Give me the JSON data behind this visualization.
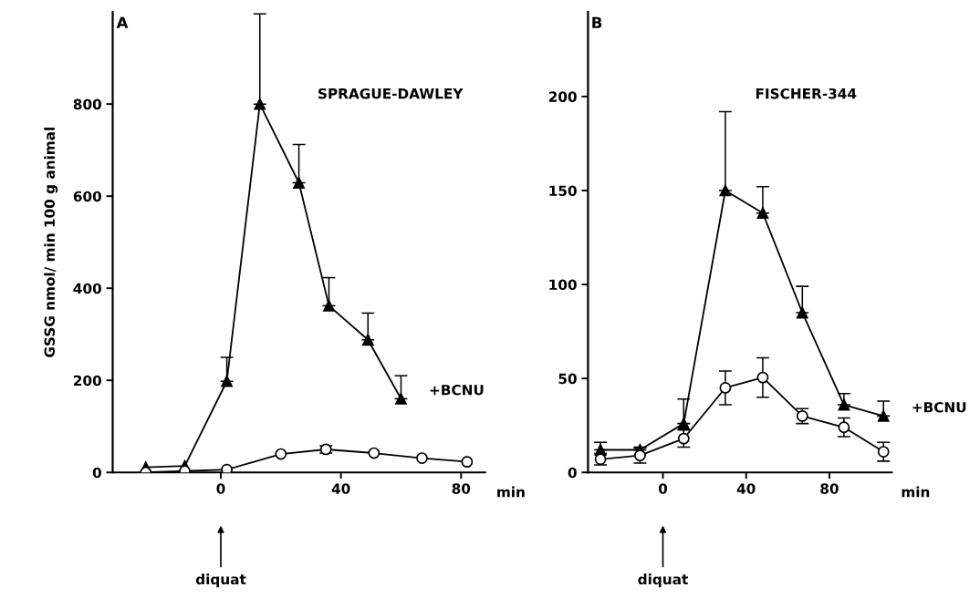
{
  "chart_data": [
    {
      "type": "line",
      "title": "A",
      "subtitle": "SPRAGUE-DAWLEY",
      "xlabel": "min",
      "ylabel": "GSSG nmol/ min 100 g animal",
      "xlim": [
        -36,
        88
      ],
      "xticks": [
        0,
        40,
        80
      ],
      "ylim": [
        0,
        1000
      ],
      "yticks": [
        0,
        200,
        400,
        600,
        800
      ],
      "grid": false,
      "legend": false,
      "annotations": [
        "diquat"
      ],
      "series": [
        {
          "name": "+BCNU",
          "color": "#000000",
          "marker": "triangle",
          "x": [
            -25,
            -12,
            2,
            13,
            26,
            36,
            49,
            60
          ],
          "values": [
            11,
            14,
            198,
            800,
            629,
            362,
            288,
            160
          ],
          "errors": [
            null,
            null,
            [
              198,
              250
            ],
            [
              800,
              996
            ],
            [
              629,
              712
            ],
            [
              362,
              423
            ],
            [
              288,
              346
            ],
            [
              160,
              210
            ]
          ]
        },
        {
          "color": "#000000",
          "marker": "circle",
          "x": [
            -25,
            -12,
            2,
            20,
            35,
            51,
            67,
            82
          ],
          "values": [
            0,
            3,
            6,
            40,
            50,
            42,
            31,
            23
          ],
          "errors": [
            null,
            null,
            null,
            null,
            8,
            null,
            null,
            null
          ]
        }
      ]
    },
    {
      "type": "line",
      "title": "B",
      "subtitle": "FISCHER-344",
      "xlabel": "min",
      "xlim": [
        -36,
        110
      ],
      "xticks": [
        0,
        40,
        80
      ],
      "ylim": [
        0,
        245
      ],
      "yticks": [
        0,
        50,
        100,
        150,
        200
      ],
      "grid": false,
      "legend": false,
      "annotations": [
        "diquat"
      ],
      "series": [
        {
          "name": "+BCNU",
          "color": "#000000",
          "marker": "triangle",
          "x": [
            -30,
            -11,
            10,
            30,
            48,
            67,
            87,
            106
          ],
          "values": [
            12,
            12,
            26,
            150,
            138,
            85,
            36,
            30
          ],
          "errors": [
            [
              12,
              16
            ],
            [
              12,
              13.5
            ],
            [
              26,
              39
            ],
            [
              150,
              192
            ],
            [
              138,
              152
            ],
            [
              85,
              99
            ],
            [
              36,
              42
            ],
            [
              30,
              38
            ]
          ]
        },
        {
          "color": "#000000",
          "marker": "circle",
          "x": [
            -30,
            -11,
            10,
            30,
            48,
            67,
            87,
            106
          ],
          "values": [
            7,
            9,
            18,
            45,
            50.5,
            30,
            24,
            11
          ],
          "errors": [
            3,
            4,
            4.5,
            9,
            10.5,
            4,
            5,
            5
          ]
        }
      ]
    }
  ]
}
